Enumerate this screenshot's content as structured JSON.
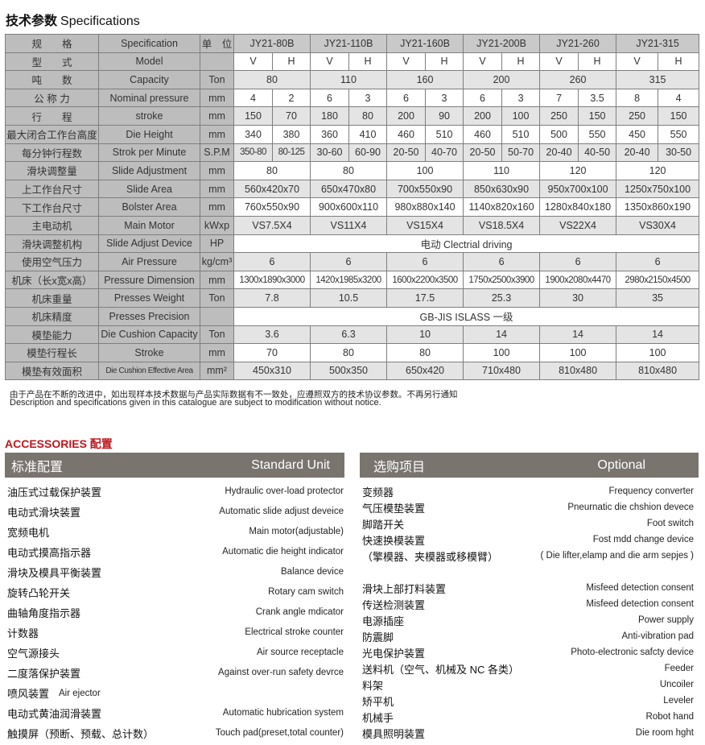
{
  "title": {
    "cn": "技术参数",
    "en": "Specifications"
  },
  "spec": {
    "header": {
      "cn": "规　　格",
      "en": "Specification",
      "unit": "单　位",
      "models": [
        "JY21-80B",
        "JY21-110B",
        "JY21-160B",
        "JY21-200B",
        "JY21-260",
        "JY21-315"
      ]
    },
    "rows": [
      {
        "cn": "型　　式",
        "en": "Model",
        "unit": "",
        "split": [
          "V",
          "H",
          "V",
          "H",
          "V",
          "H",
          "V",
          "H",
          "V",
          "H",
          "V",
          "H"
        ]
      },
      {
        "cn": "吨　　数",
        "en": "Capacity",
        "unit": "Ton",
        "merged": [
          "80",
          "110",
          "160",
          "200",
          "260",
          "315"
        ]
      },
      {
        "cn": "公 称 力",
        "en": "Nominal pressure",
        "unit": "mm",
        "split": [
          "4",
          "2",
          "6",
          "3",
          "6",
          "3",
          "6",
          "3",
          "7",
          "3.5",
          "8",
          "4"
        ]
      },
      {
        "cn": "行　　程",
        "en": "stroke",
        "unit": "mm",
        "split": [
          "150",
          "70",
          "180",
          "80",
          "200",
          "90",
          "200",
          "100",
          "250",
          "150",
          "250",
          "150"
        ]
      },
      {
        "cn": "最大闭合工作台高度",
        "en": "Die Height",
        "unit": "mm",
        "split": [
          "340",
          "380",
          "360",
          "410",
          "460",
          "510",
          "460",
          "510",
          "500",
          "550",
          "450",
          "550"
        ]
      },
      {
        "cn": "每分钟行程数",
        "en": "Strok per Minute",
        "unit": "S.P.M",
        "split": [
          "350-80",
          "80-125",
          "30-60",
          "60-90",
          "20-50",
          "40-70",
          "20-50",
          "50-70",
          "20-40",
          "40-50",
          "20-40",
          "30-50"
        ]
      },
      {
        "cn": "滑块调整量",
        "en": "Slide Adjustment",
        "unit": "mm",
        "merged": [
          "80",
          "80",
          "100",
          "110",
          "120",
          "120"
        ]
      },
      {
        "cn": "上工作台尺寸",
        "en": "Slide Area",
        "unit": "mm",
        "merged": [
          "560x420x70",
          "650x470x80",
          "700x550x90",
          "850x630x90",
          "950x700x100",
          "1250x750x100"
        ]
      },
      {
        "cn": "下工作台尺寸",
        "en": "Bolster Area",
        "unit": "mm",
        "merged": [
          "760x550x90",
          "900x600x110",
          "980x880x140",
          "1140x820x160",
          "1280x840x180",
          "1350x860x190"
        ]
      },
      {
        "cn": "主电动机",
        "en": "Main Motor",
        "unit": "kWxp",
        "merged": [
          "VS7.5X4",
          "VS11X4",
          "VS15X4",
          "VS18.5X4",
          "VS22X4",
          "VS30X4"
        ]
      },
      {
        "cn": "滑块调整机构",
        "en": "Slide Adjust Device",
        "unit": "HP",
        "full": "电动  Clectrial driving"
      },
      {
        "cn": "使用空气压力",
        "en": "Air Pressure",
        "unit": "kg/cm³",
        "merged": [
          "6",
          "6",
          "6",
          "6",
          "6",
          "6"
        ]
      },
      {
        "cn": "机床（长x宽x高）",
        "en": "Pressure Dimension",
        "unit": "mm",
        "merged": [
          "1300x1890x3000",
          "1420x1985x3200",
          "1600x2200x3500",
          "1750x2500x3900",
          "1900x2080x4470",
          "2980x2150x4500"
        ]
      },
      {
        "cn": "机床重量",
        "en": "Presses Weight",
        "unit": "Ton",
        "merged": [
          "7.8",
          "10.5",
          "17.5",
          "25.3",
          "30",
          "35"
        ]
      },
      {
        "cn": "机床精度",
        "en": "Presses Precision",
        "unit": "",
        "full": "GB-JIS  ISLASS  一级"
      },
      {
        "cn": "模垫能力",
        "en": "Die Cushion Capacity",
        "unit": "Ton",
        "merged": [
          "3.6",
          "6.3",
          "10",
          "14",
          "14",
          "14"
        ]
      },
      {
        "cn": "模垫行程长",
        "en": "Stroke",
        "unit": "mm",
        "merged": [
          "70",
          "80",
          "80",
          "100",
          "100",
          "100"
        ]
      },
      {
        "cn": "模垫有效面积",
        "en": "Die Cushion Effective Area",
        "unit": "mm²",
        "merged": [
          "450x310",
          "500x350",
          "650x420",
          "710x480",
          "810x480",
          "810x480"
        ]
      }
    ]
  },
  "notes": {
    "cn": "由于产品在不断的改进中，如出现样本技术数据与产品实际数据有不一致处，应遵照双方的技术协议参数。不再另行通知",
    "en": "Description and specifications given in this catalogue are subject to modification without notice."
  },
  "accessories": {
    "title": "ACCESSORIES  配置",
    "title_color": "#c0141c",
    "standard": {
      "cn": "标准配置",
      "en": "Standard Unit",
      "items": [
        {
          "cn": "油压式过载保护装置",
          "en": "Hydraulic over-load protector"
        },
        {
          "cn": "电动式滑块装置",
          "en": "Automatic slide adjust deveice"
        },
        {
          "cn": "宽频电机",
          "en": "Main motor(adjustable)"
        },
        {
          "cn": "电动式摸高指示器",
          "en": "Automatic die height indicator"
        },
        {
          "cn": "滑块及模具平衡装置",
          "en": "Balance device"
        },
        {
          "cn": "旋转凸轮开关",
          "en": "Rotary cam switch"
        },
        {
          "cn": "曲轴角度指示器",
          "en": "Crank angle mdicator"
        },
        {
          "cn": "计数器",
          "en": "Electrical stroke counter"
        },
        {
          "cn": "空气源接头",
          "en": "Air source receptacle"
        },
        {
          "cn": "二度落保护装置",
          "en": "Against over-run safety devrce"
        },
        {
          "cn": "喷风装置",
          "en": "Air ejector",
          "inline": true
        },
        {
          "cn": "电动式黄油润滑装置",
          "en": "Automatic hubrication system"
        },
        {
          "cn": "触摸屏（预断、预载、总计数）",
          "en": "Touch pad(preset,total counter)"
        }
      ]
    },
    "optional": {
      "cn": "选购项目",
      "en": "Optional",
      "items": [
        {
          "cn": "变频器",
          "en": "Frequency converter"
        },
        {
          "cn": "气压模垫装置",
          "en": "Pneurnatic die chshion devece"
        },
        {
          "cn": "脚踏开关",
          "en": "Foot switch"
        },
        {
          "cn": "快速换模装置",
          "en": "Fost mdd change device"
        },
        {
          "cn": "（擎模器、夹模器或移模臂）",
          "en": "( Die lifter,elamp and die arm sepjes )"
        },
        null,
        {
          "cn": "滑块上部打料装置",
          "en": "Misfeed detection consent"
        },
        {
          "cn": "传送检测装置",
          "en": "Misfeed detection consent"
        },
        {
          "cn": "电源插座",
          "en": "Power supply"
        },
        {
          "cn": "防震脚",
          "en": "Anti-vibration pad"
        },
        {
          "cn": "光电保护装置",
          "en": "Photo-electronic safcty device"
        },
        {
          "cn": "送料机（空气、机械及 NC 各类）",
          "en": "Feeder"
        },
        {
          "cn": "料架",
          "en": "Uncoiler"
        },
        {
          "cn": "矫平机",
          "en": "Leveler"
        },
        {
          "cn": "机械手",
          "en": "Robot hand"
        },
        {
          "cn": "模具照明装置",
          "en": "Die room hght"
        }
      ]
    }
  }
}
